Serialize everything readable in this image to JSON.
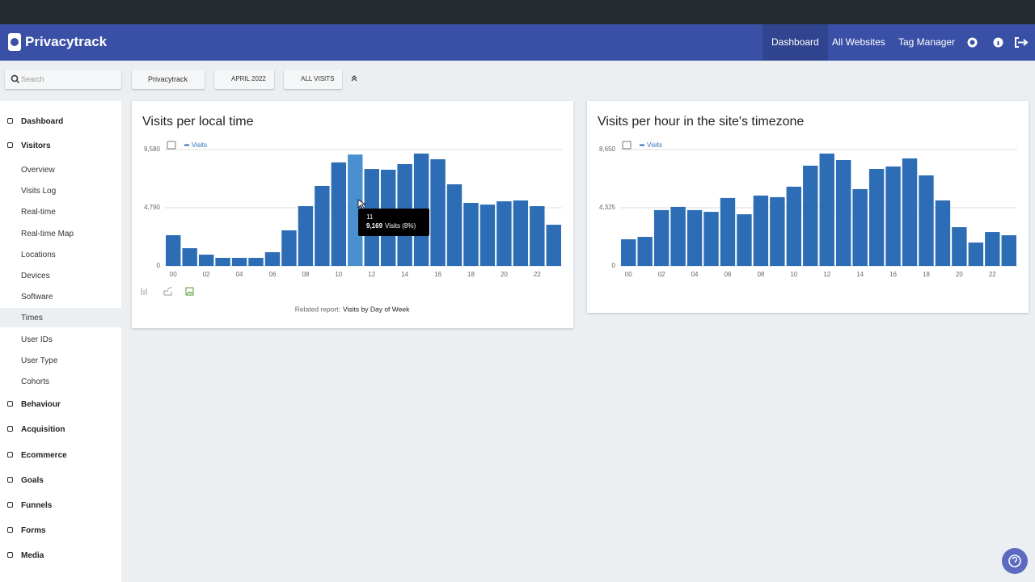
{
  "header": {
    "brand": "Privacytrack",
    "nav": [
      "Dashboard",
      "All Websites",
      "Tag Manager"
    ]
  },
  "toolbar": {
    "search_placeholder": "Search",
    "site": "Privacytrack",
    "period": "APRIL 2022",
    "segment": "ALL VISITS"
  },
  "sidebar": {
    "sections": [
      {
        "label": "Dashboard"
      },
      {
        "label": "Visitors",
        "items": [
          "Overview",
          "Visits Log",
          "Real-time",
          "Real-time Map",
          "Locations",
          "Devices",
          "Software",
          "Times",
          "User IDs",
          "User Type",
          "Cohorts"
        ]
      },
      {
        "label": "Behaviour"
      },
      {
        "label": "Acquisition"
      },
      {
        "label": "Ecommerce"
      },
      {
        "label": "Goals"
      },
      {
        "label": "Funnels"
      },
      {
        "label": "Forms"
      },
      {
        "label": "Media"
      }
    ]
  },
  "chart_data": [
    {
      "type": "bar",
      "title": "Visits per local time",
      "categories": [
        "00",
        null,
        "02",
        null,
        "04",
        null,
        "06",
        null,
        "08",
        null,
        "10",
        null,
        "12",
        null,
        "14",
        null,
        "16",
        null,
        "18",
        null,
        "20",
        null,
        "22",
        null
      ],
      "series": [
        {
          "name": "Visits",
          "color": "#2d6db5",
          "values": [
            2530,
            1460,
            930,
            665,
            665,
            665,
            1130,
            2930,
            4920,
            6590,
            8520,
            9169,
            7980,
            7920,
            8380,
            9250,
            8780,
            6720,
            5190,
            5050,
            5320,
            5390,
            4920,
            3390
          ]
        }
      ],
      "ylim": [
        0,
        9580
      ],
      "yticks": [
        0,
        {
          "value": 4790,
          "label": "4,790"
        },
        {
          "value": 9580,
          "label": "9,580"
        }
      ],
      "grid": true,
      "tooltip": {
        "title": "11",
        "value": "9,169",
        "text": "Visits (8%)"
      },
      "related": {
        "label": "Related report:",
        "link": "Visits by Day of Week"
      }
    },
    {
      "type": "bar",
      "title": "Visits per hour in the site's timezone",
      "categories": [
        "00",
        null,
        "02",
        null,
        "04",
        null,
        "06",
        null,
        "08",
        null,
        "10",
        null,
        "12",
        null,
        "14",
        null,
        "16",
        null,
        "18",
        null,
        "20",
        null,
        "22",
        null
      ],
      "series": [
        {
          "name": "Visits",
          "color": "#2d6db5",
          "values": [
            1980,
            2160,
            4150,
            4390,
            4150,
            4020,
            5050,
            3840,
            5230,
            5110,
            5890,
            7450,
            8350,
            7870,
            5710,
            7210,
            7390,
            7990,
            6730,
            4870,
            2880,
            1740,
            2520,
            2280
          ]
        }
      ],
      "ylim": [
        0,
        8650
      ],
      "yticks": [
        0,
        {
          "value": 4325,
          "label": "4,325"
        },
        {
          "value": 8650,
          "label": "8,650"
        }
      ],
      "grid": true
    }
  ]
}
